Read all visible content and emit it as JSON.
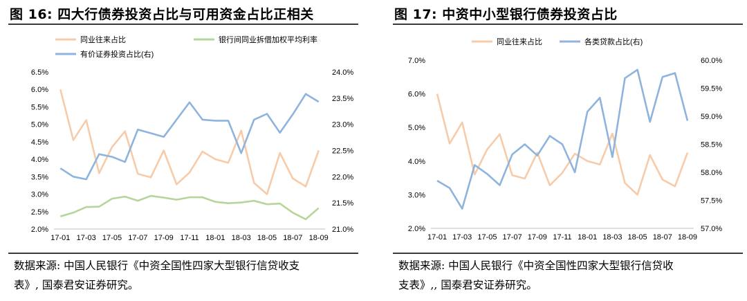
{
  "figures": [
    {
      "title": "图 16:  四大行债券投资占比与可用资金占比正相关",
      "source_line1": "数据来源: 中国人民银行《中资全国性四家大型银行信贷收支",
      "source_line2": "表》, 国泰君安证券研究。"
    },
    {
      "title": "图 17:    中资中小型银行债券投资占比",
      "source_line1": "数据来源: 中国人民银行《中资全国性四家大型银行信贷收",
      "source_line2": "支表》,, 国泰君安证券研究。"
    }
  ],
  "chart_data": [
    {
      "type": "line",
      "x": [
        "17-01",
        "17-02",
        "17-03",
        "17-04",
        "17-05",
        "17-06",
        "17-07",
        "17-08",
        "17-09",
        "17-10",
        "17-11",
        "17-12",
        "18-01",
        "18-02",
        "18-03",
        "18-04",
        "18-05",
        "18-06",
        "18-07",
        "18-08",
        "18-09"
      ],
      "x_tick_labels": [
        "17-01",
        "17-03",
        "17-05",
        "17-07",
        "17-09",
        "17-11",
        "18-01",
        "18-03",
        "18-05",
        "18-07",
        "18-09"
      ],
      "ylim": [
        2.0,
        6.5
      ],
      "y_ticks": [
        "2.0%",
        "2.5%",
        "3.0%",
        "3.5%",
        "4.0%",
        "4.5%",
        "5.0%",
        "5.5%",
        "6.0%",
        "6.5%"
      ],
      "y2lim": [
        21.0,
        24.0
      ],
      "y2_ticks": [
        "21.0%",
        "21.5%",
        "22.0%",
        "22.5%",
        "23.0%",
        "23.5%",
        "24.0%"
      ],
      "legend_position": "top",
      "grid": false,
      "series": [
        {
          "name": "同业往来占比",
          "axis": "left",
          "color": "#f8cba8",
          "values": [
            6.0,
            4.55,
            5.12,
            3.6,
            4.35,
            4.8,
            3.58,
            3.48,
            4.25,
            3.28,
            3.62,
            4.22,
            4.0,
            3.9,
            4.82,
            3.32,
            3.0,
            4.18,
            3.45,
            3.22,
            4.25
          ]
        },
        {
          "name": "银行间同业拆借加权平均利率",
          "axis": "left",
          "color": "#b5d59a",
          "values": [
            2.36,
            2.47,
            2.63,
            2.64,
            2.87,
            2.93,
            2.81,
            2.95,
            2.9,
            2.84,
            2.91,
            2.91,
            2.78,
            2.74,
            2.76,
            2.81,
            2.71,
            2.73,
            2.47,
            2.28,
            2.6
          ]
        },
        {
          "name": "有价证券投资占比(右)",
          "axis": "right",
          "color": "#8eb3dd",
          "values": [
            22.16,
            22.0,
            21.95,
            22.43,
            22.38,
            22.28,
            22.9,
            22.83,
            22.76,
            23.09,
            23.42,
            23.09,
            23.07,
            23.07,
            22.45,
            23.09,
            23.2,
            22.84,
            23.19,
            23.58,
            23.43
          ]
        }
      ]
    },
    {
      "type": "line",
      "x": [
        "17-01",
        "17-02",
        "17-03",
        "17-04",
        "17-05",
        "17-06",
        "17-07",
        "17-08",
        "17-09",
        "17-10",
        "17-11",
        "17-12",
        "18-01",
        "18-02",
        "18-03",
        "18-04",
        "18-05",
        "18-06",
        "18-07",
        "18-08",
        "18-09"
      ],
      "x_tick_labels": [
        "17-01",
        "17-03",
        "17-05",
        "17-07",
        "17-09",
        "17-11",
        "18-01",
        "18-03",
        "18-05",
        "18-07",
        "18-09"
      ],
      "ylim": [
        2.0,
        7.0
      ],
      "y_ticks": [
        "2.0%",
        "3.0%",
        "4.0%",
        "5.0%",
        "6.0%",
        "7.0%"
      ],
      "y2lim": [
        57.0,
        60.0
      ],
      "y2_ticks": [
        "57.0%",
        "57.5%",
        "58.0%",
        "58.5%",
        "59.0%",
        "59.5%",
        "60.0%"
      ],
      "legend_position": "top",
      "grid": false,
      "series": [
        {
          "name": "同业往来占比",
          "axis": "left",
          "color": "#f8cba8",
          "values": [
            6.0,
            4.52,
            5.15,
            3.6,
            4.35,
            4.8,
            3.58,
            3.48,
            4.25,
            3.28,
            3.65,
            4.22,
            4.0,
            3.9,
            4.82,
            3.35,
            3.0,
            4.18,
            3.45,
            3.25,
            4.25
          ]
        },
        {
          "name": "各类贷款占比(右)",
          "axis": "right",
          "color": "#8eb3dd",
          "values": [
            57.85,
            57.72,
            57.35,
            58.13,
            57.97,
            57.77,
            58.32,
            58.5,
            58.3,
            58.65,
            58.5,
            58.0,
            59.08,
            59.33,
            58.27,
            59.68,
            59.83,
            58.9,
            59.7,
            59.77,
            58.92
          ]
        }
      ]
    }
  ]
}
